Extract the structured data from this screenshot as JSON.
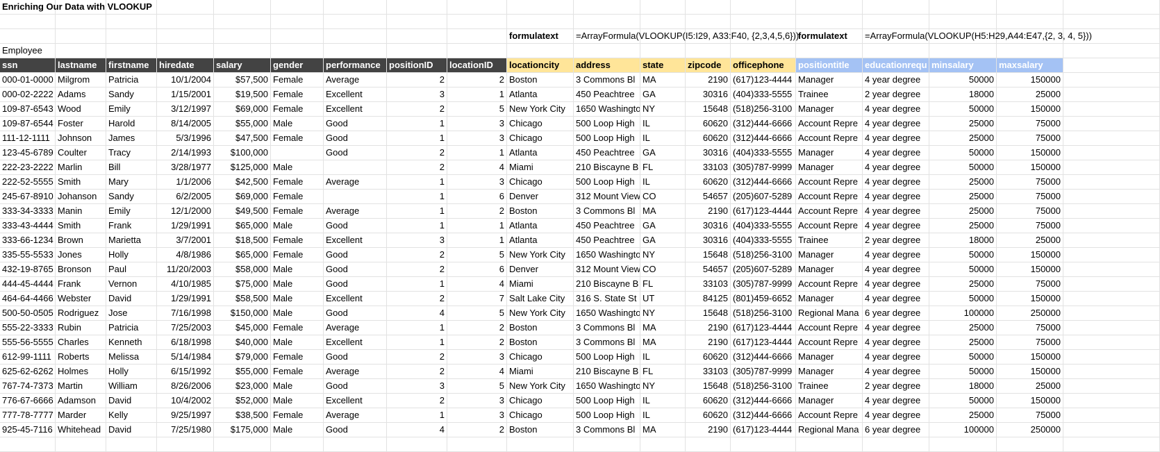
{
  "title": "Enriching Our Data with VLOOKUP",
  "formula_row": {
    "label1": "formulatext",
    "formula1": "=ArrayFormula(VLOOKUP(I5:I29, A33:F40, {2,3,4,5,6}))",
    "label2": "formulatext",
    "formula2": "=ArrayFormula(VLOOKUP(H5:H29,A44:E47,{2, 3, 4, 5}))"
  },
  "section_label": "Employee",
  "headers": [
    "ssn",
    "lastname",
    "firstname",
    "hiredate",
    "salary",
    "gender",
    "performance",
    "positionID",
    "locationID",
    "locationcity",
    "address",
    "state",
    "zipcode",
    "officephone",
    "positiontitle",
    "educationrequ",
    "minsalary",
    "maxsalary"
  ],
  "rows": [
    [
      "000-01-0000",
      "Milgrom",
      "Patricia",
      "10/1/2004",
      "$57,500",
      "Female",
      "Average",
      "2",
      "2",
      "Boston",
      "3 Commons Bl",
      "MA",
      "2190",
      "(617)123-4444",
      "Manager",
      "4 year degree",
      "50000",
      "150000"
    ],
    [
      "000-02-2222",
      "Adams",
      "Sandy",
      "1/15/2001",
      "$19,500",
      "Female",
      "Excellent",
      "3",
      "1",
      "Atlanta",
      "450 Peachtree",
      "GA",
      "30316",
      "(404)333-5555",
      "Trainee",
      "2 year degree",
      "18000",
      "25000"
    ],
    [
      "109-87-6543",
      "Wood",
      "Emily",
      "3/12/1997",
      "$69,000",
      "Female",
      "Excellent",
      "2",
      "5",
      "New York City",
      "1650 Washingto",
      "NY",
      "15648",
      "(518)256-3100",
      "Manager",
      "4 year degree",
      "50000",
      "150000"
    ],
    [
      "109-87-6544",
      "Foster",
      "Harold",
      "8/14/2005",
      "$55,000",
      "Male",
      "Good",
      "1",
      "3",
      "Chicago",
      "500 Loop High",
      "IL",
      "60620",
      "(312)444-6666",
      "Account Repre",
      "4 year degree",
      "25000",
      "75000"
    ],
    [
      "111-12-1111",
      "Johnson",
      "James",
      "5/3/1996",
      "$47,500",
      "Female",
      "Good",
      "1",
      "3",
      "Chicago",
      "500 Loop High",
      "IL",
      "60620",
      "(312)444-6666",
      "Account Repre",
      "4 year degree",
      "25000",
      "75000"
    ],
    [
      "123-45-6789",
      "Coulter",
      "Tracy",
      "2/14/1993",
      "$100,000",
      "",
      "Good",
      "2",
      "1",
      "Atlanta",
      "450 Peachtree",
      "GA",
      "30316",
      "(404)333-5555",
      "Manager",
      "4 year degree",
      "50000",
      "150000"
    ],
    [
      "222-23-2222",
      "Marlin",
      "Bill",
      "3/28/1977",
      "$125,000",
      "Male",
      "",
      "2",
      "4",
      "Miami",
      "210 Biscayne B",
      "FL",
      "33103",
      "(305)787-9999",
      "Manager",
      "4 year degree",
      "50000",
      "150000"
    ],
    [
      "222-52-5555",
      "Smith",
      "Mary",
      "1/1/2006",
      "$42,500",
      "Female",
      "Average",
      "1",
      "3",
      "Chicago",
      "500 Loop High",
      "IL",
      "60620",
      "(312)444-6666",
      "Account Repre",
      "4 year degree",
      "25000",
      "75000"
    ],
    [
      "245-67-8910",
      "Johanson",
      "Sandy",
      "6/2/2005",
      "$69,000",
      "Female",
      "",
      "1",
      "6",
      "Denver",
      "312 Mount View",
      "CO",
      "54657",
      "(205)607-5289",
      "Account Repre",
      "4 year degree",
      "25000",
      "75000"
    ],
    [
      "333-34-3333",
      "Manin",
      "Emily",
      "12/1/2000",
      "$49,500",
      "Female",
      "Average",
      "1",
      "2",
      "Boston",
      "3 Commons Bl",
      "MA",
      "2190",
      "(617)123-4444",
      "Account Repre",
      "4 year degree",
      "25000",
      "75000"
    ],
    [
      "333-43-4444",
      "Smith",
      "Frank",
      "1/29/1991",
      "$65,000",
      "Male",
      "Good",
      "1",
      "1",
      "Atlanta",
      "450 Peachtree",
      "GA",
      "30316",
      "(404)333-5555",
      "Account Repre",
      "4 year degree",
      "25000",
      "75000"
    ],
    [
      "333-66-1234",
      "Brown",
      "Marietta",
      "3/7/2001",
      "$18,500",
      "Female",
      "Excellent",
      "3",
      "1",
      "Atlanta",
      "450 Peachtree",
      "GA",
      "30316",
      "(404)333-5555",
      "Trainee",
      "2 year degree",
      "18000",
      "25000"
    ],
    [
      "335-55-5533",
      "Jones",
      "Holly",
      "4/8/1986",
      "$65,000",
      "Female",
      "Good",
      "2",
      "5",
      "New York City",
      "1650 Washingto",
      "NY",
      "15648",
      "(518)256-3100",
      "Manager",
      "4 year degree",
      "50000",
      "150000"
    ],
    [
      "432-19-8765",
      "Bronson",
      "Paul",
      "11/20/2003",
      "$58,000",
      "Male",
      "Good",
      "2",
      "6",
      "Denver",
      "312 Mount View",
      "CO",
      "54657",
      "(205)607-5289",
      "Manager",
      "4 year degree",
      "50000",
      "150000"
    ],
    [
      "444-45-4444",
      "Frank",
      "Vernon",
      "4/10/1985",
      "$75,000",
      "Male",
      "Good",
      "1",
      "4",
      "Miami",
      "210 Biscayne B",
      "FL",
      "33103",
      "(305)787-9999",
      "Account Repre",
      "4 year degree",
      "25000",
      "75000"
    ],
    [
      "464-64-4466",
      "Webster",
      "David",
      "1/29/1991",
      "$58,500",
      "Male",
      "Excellent",
      "2",
      "7",
      "Salt Lake City",
      "316 S. State St",
      "UT",
      "84125",
      "(801)459-6652",
      "Manager",
      "4 year degree",
      "50000",
      "150000"
    ],
    [
      "500-50-0505",
      "Rodriguez",
      "Jose",
      "7/16/1998",
      "$150,000",
      "Male",
      "Good",
      "4",
      "5",
      "New York City",
      "1650 Washingto",
      "NY",
      "15648",
      "(518)256-3100",
      "Regional Mana",
      "6 year degree",
      "100000",
      "250000"
    ],
    [
      "555-22-3333",
      "Rubin",
      "Patricia",
      "7/25/2003",
      "$45,000",
      "Female",
      "Average",
      "1",
      "2",
      "Boston",
      "3 Commons Bl",
      "MA",
      "2190",
      "(617)123-4444",
      "Account Repre",
      "4 year degree",
      "25000",
      "75000"
    ],
    [
      "555-56-5555",
      "Charles",
      "Kenneth",
      "6/18/1998",
      "$40,000",
      "Male",
      "Excellent",
      "1",
      "2",
      "Boston",
      "3 Commons Bl",
      "MA",
      "2190",
      "(617)123-4444",
      "Account Repre",
      "4 year degree",
      "25000",
      "75000"
    ],
    [
      "612-99-1111",
      "Roberts",
      "Melissa",
      "5/14/1984",
      "$79,000",
      "Female",
      "Good",
      "2",
      "3",
      "Chicago",
      "500 Loop High",
      "IL",
      "60620",
      "(312)444-6666",
      "Manager",
      "4 year degree",
      "50000",
      "150000"
    ],
    [
      "625-62-6262",
      "Holmes",
      "Holly",
      "6/15/1992",
      "$55,000",
      "Female",
      "Average",
      "2",
      "4",
      "Miami",
      "210 Biscayne B",
      "FL",
      "33103",
      "(305)787-9999",
      "Manager",
      "4 year degree",
      "50000",
      "150000"
    ],
    [
      "767-74-7373",
      "Martin",
      "William",
      "8/26/2006",
      "$23,000",
      "Male",
      "Good",
      "3",
      "5",
      "New York City",
      "1650 Washingto",
      "NY",
      "15648",
      "(518)256-3100",
      "Trainee",
      "2 year degree",
      "18000",
      "25000"
    ],
    [
      "776-67-6666",
      "Adamson",
      "David",
      "10/4/2002",
      "$52,000",
      "Male",
      "Excellent",
      "2",
      "3",
      "Chicago",
      "500 Loop High",
      "IL",
      "60620",
      "(312)444-6666",
      "Manager",
      "4 year degree",
      "50000",
      "150000"
    ],
    [
      "777-78-7777",
      "Marder",
      "Kelly",
      "9/25/1997",
      "$38,500",
      "Female",
      "Average",
      "1",
      "3",
      "Chicago",
      "500 Loop High",
      "IL",
      "60620",
      "(312)444-6666",
      "Account Repre",
      "4 year degree",
      "25000",
      "75000"
    ],
    [
      "925-45-7116",
      "Whitehead",
      "David",
      "7/25/1980",
      "$175,000",
      "Male",
      "Good",
      "4",
      "2",
      "Boston",
      "3 Commons Bl",
      "MA",
      "2190",
      "(617)123-4444",
      "Regional Mana",
      "6 year degree",
      "100000",
      "250000"
    ]
  ],
  "colors": {
    "header_dark": "#434343",
    "header_gold": "#ffe599",
    "header_blue": "#a4c2f4",
    "gridline": "#e2e2e2"
  }
}
